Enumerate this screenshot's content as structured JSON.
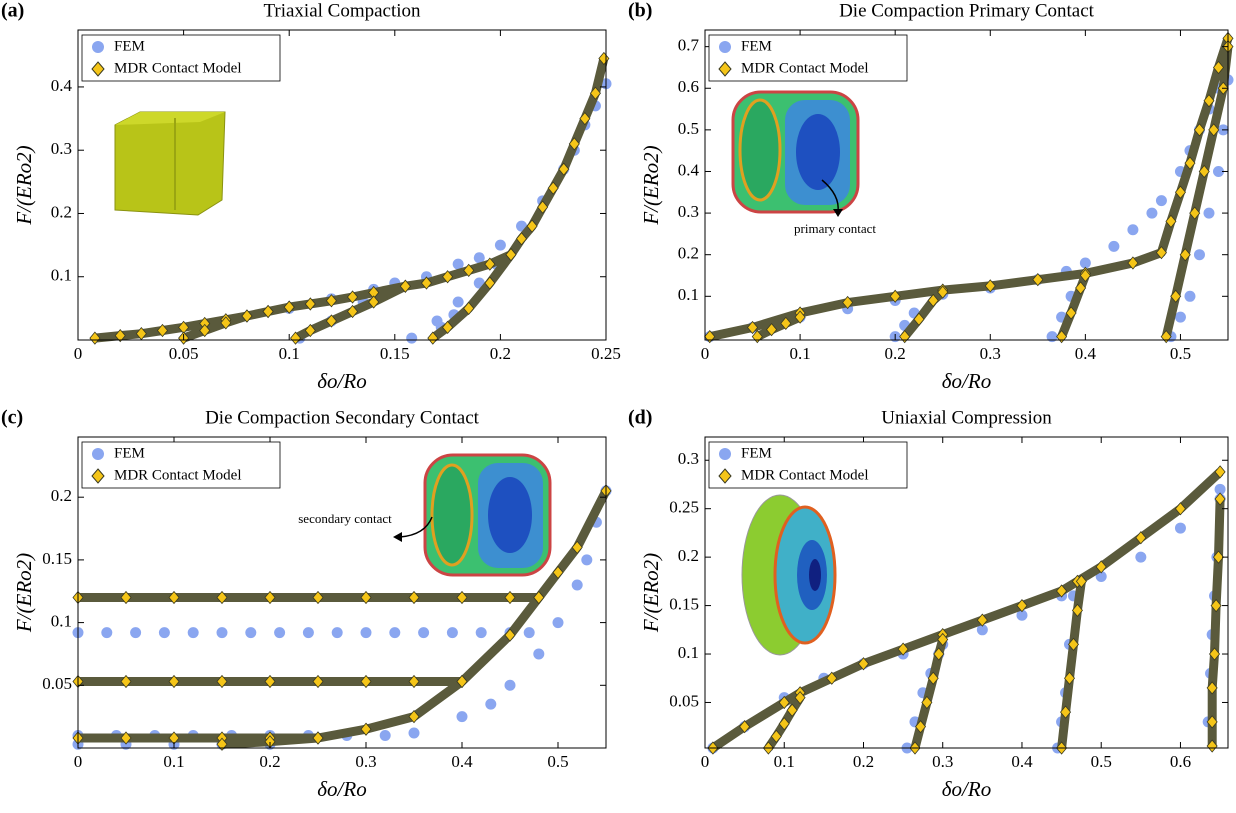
{
  "chart_data": [
    {
      "type": "line",
      "label": "(a)",
      "title": "Triaxial Compaction",
      "xlabel": "δo/Ro",
      "ylabel": "F/(ERo2)",
      "xlim": [
        0,
        0.25
      ],
      "ylim": [
        0,
        0.49
      ],
      "xticks": [
        0,
        0.05,
        0.1,
        0.15,
        0.2,
        0.25
      ],
      "yticks": [
        0.1,
        0.2,
        0.3,
        0.4
      ],
      "legend": "upper-left",
      "series": [
        {
          "name": "FEM",
          "color": "#8aa6f0",
          "marker": "circle",
          "line": false,
          "x": [
            0.1,
            0.12,
            0.14,
            0.15,
            0.165,
            0.18,
            0.19,
            0.2,
            0.21,
            0.22,
            0.23,
            0.235,
            0.24,
            0.245,
            0.25,
            0.105,
            0.12,
            0.135,
            0.158,
            0.17,
            0.18,
            0.19,
            0.198,
            0.172,
            0.178
          ],
          "values": [
            0.05,
            0.065,
            0.08,
            0.09,
            0.1,
            0.12,
            0.13,
            0.15,
            0.18,
            0.22,
            0.27,
            0.3,
            0.34,
            0.37,
            0.405,
            0.003,
            0.03,
            0.06,
            0.003,
            0.03,
            0.06,
            0.09,
            0.12,
            0.02,
            0.04
          ]
        },
        {
          "name": "MDR Contact Model",
          "color": "#f5c518",
          "marker": "diamond",
          "line": true,
          "line_color": "#5a5a3c",
          "x": [
            0.008,
            0.02,
            0.03,
            0.04,
            0.05,
            0.06,
            0.07,
            0.08,
            0.09,
            0.1,
            null,
            0.05,
            0.06,
            0.07,
            0.08,
            0.09,
            0.1,
            0.11,
            0.12,
            0.13,
            0.14,
            0.155,
            null,
            0.103,
            0.11,
            0.12,
            0.13,
            0.14,
            0.155,
            0.165,
            0.175,
            0.185,
            0.195,
            0.205,
            null,
            0.168,
            0.175,
            0.185,
            0.195,
            0.205,
            0.21,
            0.215,
            0.22,
            0.225,
            0.23,
            0.235,
            0.24,
            0.245,
            0.249
          ],
          "values": [
            0.003,
            0.007,
            0.01,
            0.015,
            0.02,
            0.026,
            0.032,
            0.038,
            0.045,
            0.052,
            null,
            0.003,
            0.015,
            0.027,
            0.038,
            0.045,
            0.052,
            0.057,
            0.062,
            0.068,
            0.075,
            0.085,
            null,
            0.003,
            0.015,
            0.03,
            0.045,
            0.06,
            0.085,
            0.09,
            0.1,
            0.11,
            0.12,
            0.135,
            null,
            0.003,
            0.02,
            0.05,
            0.09,
            0.135,
            0.16,
            0.18,
            0.21,
            0.24,
            0.27,
            0.31,
            0.35,
            0.39,
            0.445
          ]
        }
      ]
    },
    {
      "type": "line",
      "label": "(b)",
      "title": "Die Compaction Primary Contact",
      "xlabel": "δo/Ro",
      "ylabel": "F/(ERo2)",
      "xlim": [
        0,
        0.55
      ],
      "ylim": [
        -0.005,
        0.74
      ],
      "xticks": [
        0,
        0.1,
        0.2,
        0.3,
        0.4,
        0.5
      ],
      "yticks": [
        0.1,
        0.2,
        0.3,
        0.4,
        0.5,
        0.6,
        0.7
      ],
      "legend": "upper-left",
      "annotations": [
        "primary contact"
      ],
      "series": [
        {
          "name": "FEM",
          "color": "#8aa6f0",
          "marker": "circle",
          "line": false,
          "x": [
            0.005,
            0.05,
            0.1,
            0.15,
            0.2,
            0.25,
            0.3,
            0.35,
            0.38,
            0.4,
            0.43,
            0.45,
            0.47,
            0.48,
            0.5,
            0.51,
            0.52,
            0.53,
            0.54,
            0.55,
            0.2,
            0.21,
            0.22,
            0.365,
            0.375,
            0.385,
            0.49,
            0.5,
            0.51,
            0.52,
            0.53,
            0.54,
            0.545
          ],
          "values": [
            0.003,
            0.025,
            0.05,
            0.07,
            0.09,
            0.105,
            0.12,
            0.14,
            0.16,
            0.18,
            0.22,
            0.26,
            0.3,
            0.33,
            0.4,
            0.45,
            0.5,
            0.55,
            0.6,
            0.62,
            0.003,
            0.03,
            0.06,
            0.003,
            0.05,
            0.1,
            0.003,
            0.05,
            0.1,
            0.2,
            0.3,
            0.4,
            0.5
          ]
        },
        {
          "name": "MDR Contact Model",
          "color": "#f5c518",
          "marker": "diamond",
          "line": true,
          "line_color": "#5a5a3c",
          "x": [
            0.005,
            0.05,
            0.1,
            0.15,
            0.2,
            0.25,
            0.3,
            0.35,
            0.4,
            0.45,
            0.48,
            0.49,
            0.5,
            0.51,
            0.52,
            0.53,
            0.54,
            0.55,
            null,
            0.055,
            0.07,
            0.085,
            0.1,
            null,
            0.21,
            0.225,
            0.24,
            0.25,
            null,
            0.375,
            0.385,
            0.395,
            0.4,
            null,
            0.485,
            0.495,
            0.505,
            0.515,
            0.525,
            0.535,
            0.545,
            0.55
          ],
          "values": [
            0.003,
            0.025,
            0.06,
            0.085,
            0.1,
            0.115,
            0.125,
            0.14,
            0.155,
            0.18,
            0.205,
            0.28,
            0.35,
            0.42,
            0.5,
            0.57,
            0.65,
            0.72,
            null,
            0.003,
            0.02,
            0.035,
            0.05,
            null,
            0.003,
            0.045,
            0.09,
            0.11,
            null,
            0.003,
            0.06,
            0.12,
            0.15,
            null,
            0.003,
            0.1,
            0.2,
            0.3,
            0.4,
            0.5,
            0.6,
            0.7
          ]
        }
      ]
    },
    {
      "type": "line",
      "label": "(c)",
      "title": "Die Compaction Secondary Contact",
      "xlabel": "δo/Ro",
      "ylabel": "F/(ERo2)",
      "xlim": [
        0,
        0.55
      ],
      "ylim": [
        0,
        0.248
      ],
      "xticks": [
        0,
        0.1,
        0.2,
        0.3,
        0.4,
        0.5
      ],
      "yticks": [
        0.05,
        0.1,
        0.15,
        0.2
      ],
      "legend": "upper-left",
      "annotations": [
        "secondary contact"
      ],
      "series": [
        {
          "name": "FEM",
          "color": "#8aa6f0",
          "marker": "circle",
          "line": false,
          "x": [
            0,
            0.03,
            0.06,
            0.09,
            0.12,
            0.15,
            0.18,
            0.21,
            0.24,
            0.27,
            0.3,
            0.33,
            0.36,
            0.39,
            0.42,
            0.45,
            0.47,
            0.0,
            0.04,
            0.08,
            0.12,
            0.16,
            0.2,
            0.24,
            0.28,
            0.32,
            0.0,
            0.05,
            0.1,
            0.15,
            0.2,
            0.35,
            0.4,
            0.43,
            0.45,
            0.48,
            0.5,
            0.52,
            0.53,
            0.54,
            0.55
          ],
          "values": [
            0.092,
            0.092,
            0.092,
            0.092,
            0.092,
            0.092,
            0.092,
            0.092,
            0.092,
            0.092,
            0.092,
            0.092,
            0.092,
            0.092,
            0.092,
            0.092,
            0.092,
            0.01,
            0.01,
            0.01,
            0.01,
            0.01,
            0.01,
            0.01,
            0.01,
            0.01,
            0.003,
            0.003,
            0.003,
            0.003,
            0.003,
            0.012,
            0.025,
            0.035,
            0.05,
            0.075,
            0.1,
            0.13,
            0.15,
            0.18,
            0.205
          ]
        },
        {
          "name": "MDR Contact Model",
          "color": "#f5c518",
          "marker": "diamond",
          "line": true,
          "line_color": "#5a5a3c",
          "x": [
            0,
            0.05,
            0.1,
            0.15,
            0.2,
            0.25,
            0.3,
            0.35,
            0.4,
            0.45,
            0.48,
            null,
            0,
            0.05,
            0.1,
            0.15,
            0.2,
            0.25,
            0.3,
            0.35,
            0.4,
            null,
            0,
            0.05,
            0.1,
            0.15,
            0.2,
            0.25,
            null,
            0.15,
            0.2,
            0.25,
            0.3,
            0.35,
            0.4,
            0.45,
            0.48,
            0.5,
            0.52,
            0.55
          ],
          "values": [
            0.12,
            0.12,
            0.12,
            0.12,
            0.12,
            0.12,
            0.12,
            0.12,
            0.12,
            0.12,
            0.12,
            null,
            0.053,
            0.053,
            0.053,
            0.053,
            0.053,
            0.053,
            0.053,
            0.053,
            0.053,
            null,
            0.008,
            0.008,
            0.008,
            0.008,
            0.008,
            0.008,
            null,
            0.003,
            0.005,
            0.008,
            0.015,
            0.025,
            0.053,
            0.09,
            0.12,
            0.14,
            0.16,
            0.205
          ]
        }
      ]
    },
    {
      "type": "line",
      "label": "(d)",
      "title": "Uniaxial Compression",
      "xlabel": "δo/Ro",
      "ylabel": "F/(ERo2)",
      "xlim": [
        0,
        0.66
      ],
      "ylim": [
        0.003,
        0.324
      ],
      "xticks": [
        0,
        0.1,
        0.2,
        0.3,
        0.4,
        0.5,
        0.6
      ],
      "yticks": [
        0.05,
        0.1,
        0.15,
        0.2,
        0.25,
        0.3
      ],
      "legend": "upper-left",
      "series": [
        {
          "name": "FEM",
          "color": "#8aa6f0",
          "marker": "circle",
          "line": false,
          "x": [
            0.01,
            0.05,
            0.1,
            0.15,
            0.2,
            0.25,
            0.3,
            0.35,
            0.4,
            0.45,
            0.5,
            0.55,
            0.6,
            0.65,
            0.255,
            0.265,
            0.275,
            0.285,
            0.295,
            0.445,
            0.45,
            0.455,
            0.46,
            0.465,
            0.635,
            0.638,
            0.64,
            0.643,
            0.646,
            0.65
          ],
          "values": [
            0.003,
            0.025,
            0.055,
            0.075,
            0.09,
            0.1,
            0.11,
            0.125,
            0.14,
            0.16,
            0.18,
            0.2,
            0.23,
            0.27,
            0.003,
            0.03,
            0.06,
            0.08,
            0.1,
            0.003,
            0.03,
            0.06,
            0.11,
            0.16,
            0.03,
            0.08,
            0.12,
            0.16,
            0.2,
            0.26
          ]
        },
        {
          "name": "MDR Contact Model",
          "color": "#f5c518",
          "marker": "diamond",
          "line": true,
          "line_color": "#5a5a3c",
          "x": [
            0.01,
            0.05,
            0.1,
            0.12,
            0.16,
            0.2,
            0.25,
            0.3,
            0.35,
            0.4,
            0.45,
            0.47,
            0.5,
            0.55,
            0.6,
            0.65,
            null,
            0.08,
            0.09,
            0.1,
            0.11,
            0.12,
            null,
            0.265,
            0.272,
            0.28,
            0.288,
            0.295,
            0.3,
            null,
            0.45,
            0.455,
            0.46,
            0.465,
            0.47,
            0.475,
            null,
            0.64,
            0.64,
            0.64,
            0.643,
            0.645,
            0.648,
            0.65
          ],
          "values": [
            0.003,
            0.025,
            0.05,
            0.06,
            0.075,
            0.09,
            0.105,
            0.12,
            0.135,
            0.15,
            0.165,
            0.175,
            0.19,
            0.22,
            0.25,
            0.288,
            null,
            0.003,
            0.015,
            0.028,
            0.042,
            0.055,
            null,
            0.003,
            0.025,
            0.05,
            0.075,
            0.1,
            0.115,
            null,
            0.003,
            0.04,
            0.075,
            0.11,
            0.145,
            0.175,
            null,
            0.005,
            0.03,
            0.065,
            0.1,
            0.15,
            0.2,
            0.26
          ]
        }
      ]
    }
  ]
}
